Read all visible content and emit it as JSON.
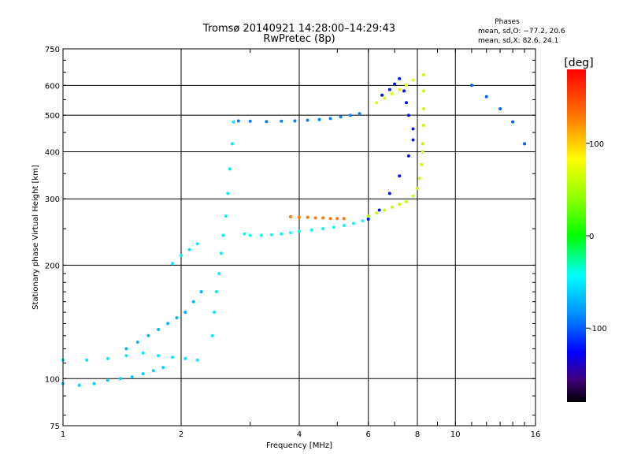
{
  "chart_data": {
    "type": "scatter",
    "title": "Tromsø 20140921 14:28:00–14:29:43",
    "subtitle": "RwPretec (8p)",
    "xlabel": "Frequency [MHz]",
    "ylabel": "Stationary phase Virtual Height [km]",
    "x_scale": "log",
    "y_scale": "log",
    "xlim": [
      1,
      16
    ],
    "ylim": [
      75,
      750
    ],
    "x_ticks": [
      1,
      2,
      4,
      6,
      8,
      10,
      16
    ],
    "y_ticks": [
      75,
      100,
      200,
      300,
      400,
      500,
      600,
      750
    ],
    "grid": true,
    "phase_stats": {
      "heading": "Phases",
      "line_o": "mean, sd,O: −77.2, 20.6",
      "line_x": "mean, sd,X:  82.6, 24.1"
    },
    "colorbar": {
      "label": "[deg]",
      "ticks": [
        100,
        0,
        -100
      ],
      "range": [
        -180,
        180
      ]
    },
    "traces": [
      {
        "x": [
          1.0,
          1.1,
          1.2,
          1.3,
          1.4,
          1.5,
          1.6,
          1.7,
          1.8
        ],
        "y": [
          97,
          96,
          97,
          99,
          100,
          101,
          103,
          105,
          107
        ],
        "phase": -60
      },
      {
        "x": [
          1.0,
          1.15,
          1.3,
          1.45,
          1.6,
          1.75,
          1.9,
          2.05,
          2.2
        ],
        "y": [
          112,
          112,
          113,
          115,
          117,
          115,
          114,
          113,
          112
        ],
        "phase": -50
      },
      {
        "x": [
          1.45,
          1.55,
          1.65,
          1.75,
          1.85,
          1.95,
          2.05,
          2.15,
          2.25
        ],
        "y": [
          120,
          125,
          130,
          135,
          140,
          145,
          150,
          160,
          170
        ],
        "phase": -70
      },
      {
        "x": [
          1.9,
          2.0,
          2.1,
          2.2
        ],
        "y": [
          202,
          212,
          220,
          228
        ],
        "phase": -50
      },
      {
        "x": [
          2.4,
          2.43,
          2.46,
          2.5,
          2.53,
          2.56,
          2.6,
          2.63,
          2.66,
          2.7,
          2.72
        ],
        "y": [
          130,
          150,
          170,
          190,
          215,
          240,
          270,
          310,
          360,
          420,
          480
        ],
        "phase": -50
      },
      {
        "x": [
          2.9,
          3.0,
          3.2,
          3.4,
          3.6,
          3.8,
          4.0,
          4.3,
          4.6,
          4.9,
          5.2,
          5.5,
          5.8,
          6.0
        ],
        "y": [
          242,
          240,
          240,
          241,
          242,
          244,
          246,
          248,
          250,
          252,
          255,
          258,
          262,
          268
        ],
        "phase": -40
      },
      {
        "x": [
          3.8,
          4.0,
          4.2,
          4.4,
          4.6,
          4.8,
          5.0,
          5.2
        ],
        "y": [
          269,
          268,
          268,
          267,
          267,
          266,
          266,
          266
        ],
        "phase": 130
      },
      {
        "x": [
          2.8,
          3.0,
          3.3,
          3.6,
          3.9,
          4.2,
          4.5,
          4.8,
          5.1,
          5.4,
          5.7
        ],
        "y": [
          483,
          482,
          481,
          482,
          483,
          485,
          487,
          490,
          495,
          500,
          505
        ],
        "phase": -90
      },
      {
        "x": [
          6.0,
          6.3,
          6.6,
          6.9,
          7.2,
          7.5,
          7.8,
          8.0,
          8.1,
          8.2,
          8.25
        ],
        "y": [
          270,
          275,
          280,
          285,
          290,
          295,
          305,
          320,
          340,
          370,
          400
        ],
        "phase": 60
      },
      {
        "x": [
          8.25,
          8.3,
          8.3,
          8.3,
          8.3
        ],
        "y": [
          420,
          470,
          520,
          580,
          640
        ],
        "phase": 60
      },
      {
        "x": [
          6.0,
          6.4,
          6.8,
          7.2,
          7.6,
          7.8
        ],
        "y": [
          265,
          280,
          310,
          345,
          390,
          430
        ],
        "phase": -120
      },
      {
        "x": [
          7.8,
          7.6,
          7.5,
          7.4
        ],
        "y": [
          460,
          500,
          540,
          580
        ],
        "phase": -120
      },
      {
        "x": [
          6.3,
          6.6,
          6.9,
          7.2,
          7.5,
          7.8
        ],
        "y": [
          540,
          555,
          570,
          585,
          600,
          620
        ],
        "phase": 70
      },
      {
        "x": [
          6.5,
          6.8,
          7.0,
          7.2
        ],
        "y": [
          565,
          585,
          605,
          625
        ],
        "phase": -120
      },
      {
        "x": [
          11.0,
          12.0,
          13.0,
          14.0,
          15.0
        ],
        "y": [
          600,
          560,
          520,
          480,
          420
        ],
        "phase": -100
      }
    ]
  }
}
